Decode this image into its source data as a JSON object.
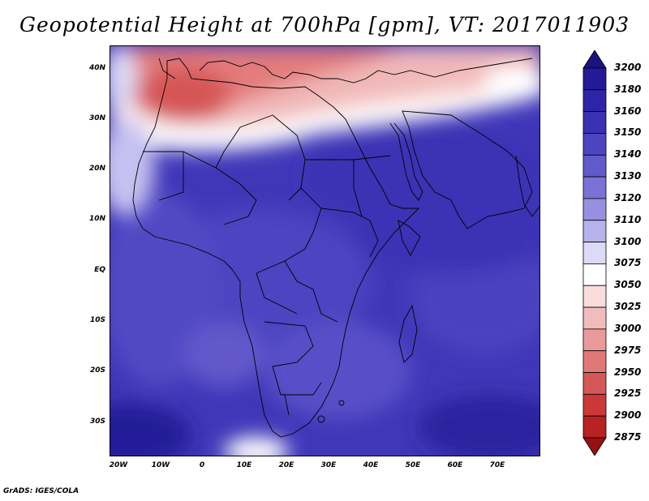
{
  "title": "Geopotential Height at 700hPa [gpm], VT: 2017011903",
  "credit": "GrADS: IGES/COLA",
  "map": {
    "lat_labels": [
      "40N",
      "30N",
      "20N",
      "10N",
      "EQ",
      "10S",
      "20S",
      "30S"
    ],
    "lon_labels": [
      "20W",
      "10W",
      "0",
      "10E",
      "20E",
      "30E",
      "40E",
      "50E",
      "60E",
      "70E"
    ],
    "lat_range": [
      -37,
      45
    ],
    "lon_range": [
      -22,
      80
    ]
  },
  "colorbar": {
    "levels": [
      "3200",
      "3180",
      "3160",
      "3150",
      "3140",
      "3130",
      "3120",
      "3110",
      "3100",
      "3075",
      "3050",
      "3025",
      "3000",
      "2975",
      "2950",
      "2925",
      "2900",
      "2875"
    ],
    "colors": [
      "#1a127e",
      "#241a98",
      "#2e24aa",
      "#3a30b4",
      "#4d45c0",
      "#6259cb",
      "#7b72d6",
      "#9790e1",
      "#b7b2ec",
      "#dcdaf6",
      "#ffffff",
      "#f9dcdc",
      "#f2bcbc",
      "#ea9a9a",
      "#e07878",
      "#d65757",
      "#cc3838",
      "#b82222",
      "#9a1010"
    ]
  }
}
